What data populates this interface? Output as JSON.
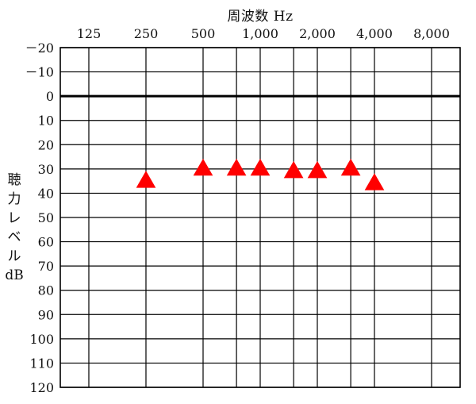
{
  "chart_data": {
    "type": "scatter",
    "title": "",
    "xlabel": "周波数 Hz",
    "ylabel": "聴力レベル dB",
    "ylabel_lines": [
      "聴",
      "力",
      "レ",
      "ベ",
      "ル",
      "dB"
    ],
    "x_ticks": [
      {
        "label": "125",
        "freq": 125
      },
      {
        "label": "250",
        "freq": 250
      },
      {
        "label": "500",
        "freq": 500
      },
      {
        "label": "1,000",
        "freq": 1000
      },
      {
        "label": "2,000",
        "freq": 2000
      },
      {
        "label": "4,000",
        "freq": 4000
      },
      {
        "label": "8,000",
        "freq": 8000
      }
    ],
    "x_minor_gridlines": [
      750,
      1500,
      3000
    ],
    "x_range": [
      88.4,
      11314
    ],
    "x_scale": "log2",
    "y_ticks": [
      "－20",
      "－10",
      "0",
      "10",
      "20",
      "30",
      "40",
      "50",
      "60",
      "70",
      "80",
      "90",
      "100",
      "110",
      "120"
    ],
    "y_tick_values": [
      -20,
      -10,
      0,
      10,
      20,
      30,
      40,
      50,
      60,
      70,
      80,
      90,
      100,
      110,
      120
    ],
    "ylim": [
      -20,
      120
    ],
    "y_inverted": true,
    "grid": true,
    "series": [
      {
        "marker": "triangle",
        "color": "#ff0000",
        "points": [
          {
            "x": 250,
            "y": 35
          },
          {
            "x": 500,
            "y": 30
          },
          {
            "x": 750,
            "y": 30
          },
          {
            "x": 1000,
            "y": 30
          },
          {
            "x": 1500,
            "y": 31
          },
          {
            "x": 2000,
            "y": 31
          },
          {
            "x": 3000,
            "y": 30
          },
          {
            "x": 4000,
            "y": 36
          }
        ]
      }
    ]
  }
}
